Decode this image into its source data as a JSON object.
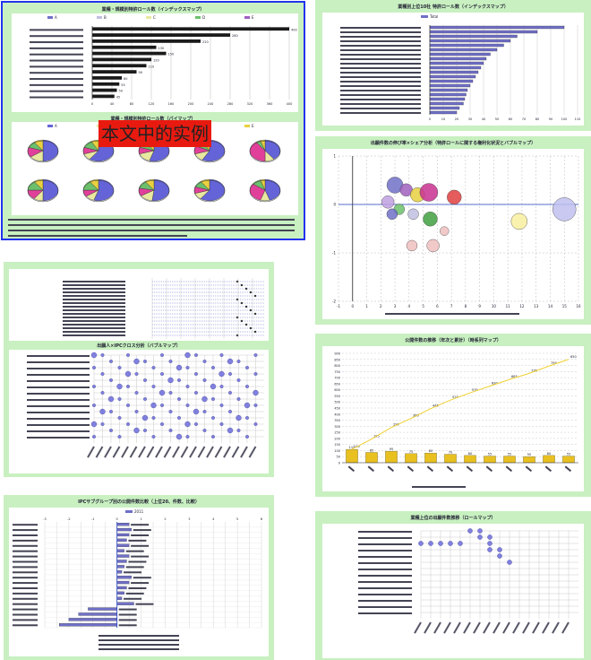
{
  "overlay_label": "本文中的实例",
  "chart_data": [
    {
      "type": "bar",
      "orientation": "horizontal",
      "title": "業種・規模別特許ロール数（インデックスマップ）",
      "legend": [
        "A",
        "B",
        "C",
        "D",
        "E"
      ],
      "categories": [
        "C1",
        "C2",
        "C3",
        "C4",
        "C5",
        "C6",
        "C7",
        "C8",
        "C9",
        "C10",
        "C11",
        "C12"
      ],
      "values": [
        400,
        280,
        220,
        130,
        150,
        120,
        110,
        90,
        60,
        55,
        50,
        45
      ],
      "xlim": [
        0,
        400
      ],
      "color": "#1a1a1a"
    },
    {
      "type": "pie",
      "title": "業種・規模別特許ロール数（パイマップ）",
      "legend": [
        "A",
        "B",
        "C",
        "D",
        "E"
      ],
      "slice_colors": [
        "#6464d8",
        "#e8e8a0",
        "#e0409a",
        "#6cc06c",
        "#e8d040",
        "#ffffff"
      ],
      "pies": [
        [
          50,
          15,
          15,
          10,
          10
        ],
        [
          60,
          10,
          10,
          12,
          8
        ],
        [
          55,
          15,
          10,
          10,
          10
        ],
        [
          58,
          12,
          12,
          10,
          8
        ],
        [
          40,
          10,
          40,
          5,
          5
        ],
        [
          50,
          10,
          15,
          15,
          10
        ],
        [
          55,
          10,
          10,
          15,
          10
        ],
        [
          52,
          14,
          12,
          12,
          10
        ],
        [
          60,
          10,
          10,
          10,
          10
        ],
        [
          45,
          10,
          30,
          10,
          5
        ]
      ]
    },
    {
      "type": "bar",
      "orientation": "horizontal",
      "title": "業種別上位10社 特許ロール数（インデックスマップ）",
      "legend": [
        "Total"
      ],
      "categories": [
        "R1",
        "R2",
        "R3",
        "R4",
        "R5",
        "R6",
        "R7",
        "R8",
        "R9",
        "R10",
        "R11",
        "R12",
        "R13",
        "R14",
        "R15",
        "R16",
        "R17",
        "R18",
        "R19",
        "R20"
      ],
      "values": [
        100,
        80,
        65,
        60,
        55,
        50,
        45,
        42,
        40,
        38,
        36,
        34,
        32,
        30,
        28,
        27,
        26,
        25,
        22,
        20
      ],
      "xlim": [
        0,
        110
      ],
      "color": "#7070c8"
    },
    {
      "type": "scatter",
      "title": "出願件数の伸び率×シェア分析（特許ロールに関する権利化状況とバブルマップ）",
      "xlim": [
        -1,
        16
      ],
      "ylim": [
        -2,
        1
      ],
      "x_ticks": [
        -1,
        0,
        1,
        2,
        3,
        4,
        5,
        6,
        7,
        8,
        9,
        10,
        11,
        12,
        13,
        14,
        15,
        16
      ],
      "y_ticks": [
        1,
        0,
        -1,
        -2
      ],
      "points": [
        {
          "x": 3.0,
          "y": 0.4,
          "r": 9,
          "c": "#7070c8"
        },
        {
          "x": 3.8,
          "y": 0.3,
          "r": 7,
          "c": "#a060c0"
        },
        {
          "x": 4.6,
          "y": 0.2,
          "r": 8,
          "c": "#e8d040"
        },
        {
          "x": 5.4,
          "y": 0.25,
          "r": 10,
          "c": "#c83090"
        },
        {
          "x": 7.2,
          "y": 0.15,
          "r": 8,
          "c": "#e04040"
        },
        {
          "x": 2.5,
          "y": 0.05,
          "r": 7,
          "c": "#c0a0e0"
        },
        {
          "x": 3.3,
          "y": -0.1,
          "r": 6,
          "c": "#6cc06c"
        },
        {
          "x": 2.8,
          "y": -0.2,
          "r": 6,
          "c": "#7070c8"
        },
        {
          "x": 4.3,
          "y": -0.2,
          "r": 6,
          "c": "#c0c0e0"
        },
        {
          "x": 5.5,
          "y": -0.3,
          "r": 8,
          "c": "#40a040"
        },
        {
          "x": 11.8,
          "y": -0.35,
          "r": 9,
          "c": "#f8f0a0"
        },
        {
          "x": 15.0,
          "y": -0.1,
          "r": 13,
          "c": "#c0c0f0"
        },
        {
          "x": 4.2,
          "y": -0.85,
          "r": 6,
          "c": "#f0c0c0"
        },
        {
          "x": 5.7,
          "y": -0.85,
          "r": 7,
          "c": "#f0c0c0"
        },
        {
          "x": 6.5,
          "y": -0.55,
          "r": 5,
          "c": "#f0c0c0"
        }
      ]
    },
    {
      "type": "bar",
      "title": "公開件数の推移（年次と累計）（時系列マップ）",
      "categories": [
        "T1",
        "T2",
        "T3",
        "T4",
        "T5",
        "T6",
        "T7",
        "T8",
        "T9",
        "T10",
        "T11",
        "T12"
      ],
      "values": [
        110,
        85,
        95,
        75,
        80,
        70,
        60,
        55,
        55,
        50,
        60,
        55
      ],
      "cumulative": [
        110,
        195,
        290,
        365,
        445,
        515,
        575,
        630,
        685,
        735,
        795,
        850
      ],
      "ylim": [
        0,
        900
      ],
      "y_ticks": [
        0,
        50,
        100,
        150,
        200,
        250,
        300,
        350,
        400,
        450,
        500,
        550,
        600,
        650,
        700,
        750,
        800,
        850,
        900
      ],
      "bar_color": "#e8c020",
      "line_color": "#f0d030"
    },
    {
      "type": "bar",
      "orientation": "horizontal",
      "title": "IPCサブグループ別の公開件数比較（上位20、件数、比較）",
      "legend": [
        "2011"
      ],
      "categories": [
        "K1",
        "K2",
        "K3",
        "K4",
        "K5",
        "K6",
        "K7",
        "K8",
        "K9",
        "K10",
        "K11",
        "K12",
        "K13",
        "K14",
        "K15",
        "K16",
        "K17",
        "K18",
        "K19",
        "K20"
      ],
      "values": [
        0.5,
        0.6,
        0.5,
        0.4,
        0.5,
        0.3,
        0.5,
        0.4,
        0.3,
        0.2,
        0.6,
        0.5,
        0.4,
        0.3,
        0.2,
        0.7,
        -1.2,
        -1.6,
        -2.0,
        -2.4
      ],
      "xlim": [
        -3,
        6
      ],
      "color": "#7070c8"
    },
    {
      "type": "scatter",
      "title": "出願人×IPCクロス分析（バブルマップ）",
      "note": "bubble grid"
    },
    {
      "type": "scatter",
      "title": "業種上位の出願件数推移（ロールマップ）",
      "note": "bubble grid"
    }
  ]
}
